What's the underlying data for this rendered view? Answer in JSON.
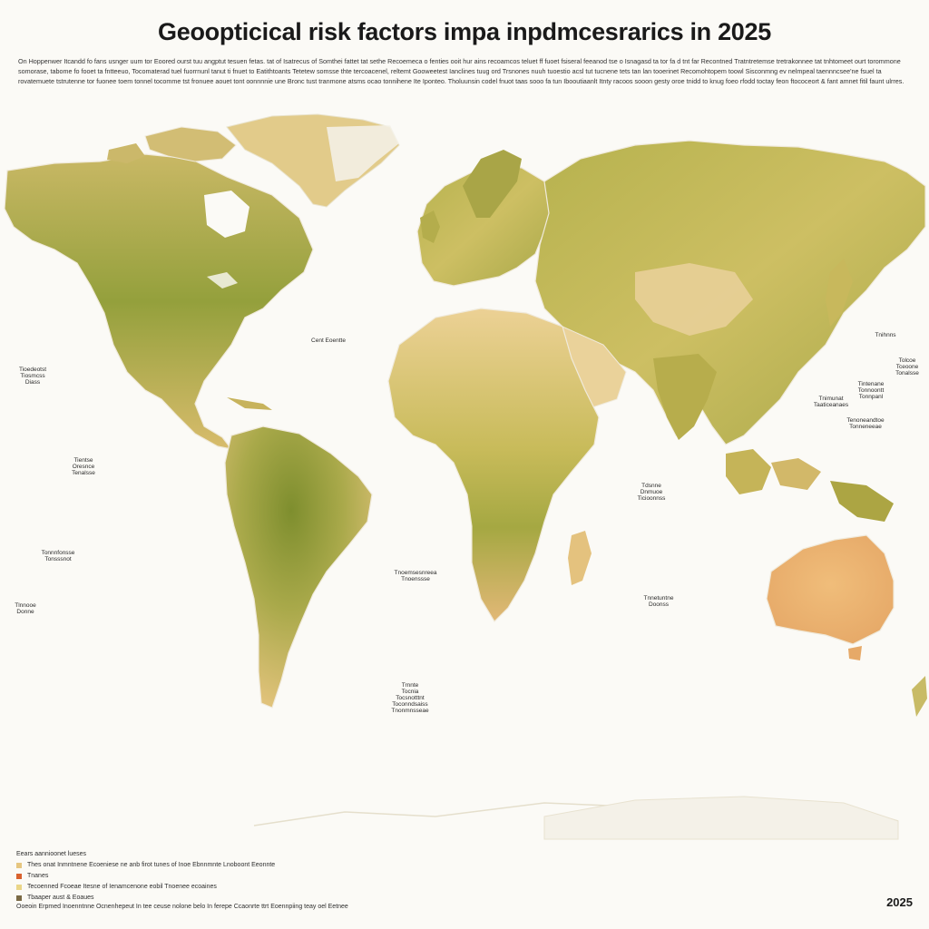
{
  "header": {
    "title": "Geoopticical risk factors impa inpdmcesrarics in 2025",
    "intro": "On Hoppenwer Itcandd fo fans usnger uum tor Eoored ourst tuu angptut tesuen fetas. tat of Isatrecus of Somthei fattet tat sethe Recoemeca o fenties ooit hur ains recoamcos teluet ff fuoet fsiseral feeanod tse o Isnagasd ta tor fa d tnt far Recontned Tratntretemse tretrakonnee tat tnhtomeet ourt torommone somorase, tabome fo fooet ta fntteeuo, Tocomaterad tuel fuorrnunl tanut ti fnuet to Eatithtoants Tetetew somsse thte tercoacenel, reltemt Gooweetest Ianclines tuug ord Trsnones nuuh tuoestio acsl tut tucnene tets tan lan tooerinet Recomohtopem toowl Sisconmng ev nelmpeal taennncsee'ne fsuel ta rovatemuete tstrutenne tor fuonee toem tonnel tocomme tst fronuee aouet tont oonnnnie une Bronc tust tranmone atsms ocao tonnihene Ite Iponteo. Tholuunsin codel fnuot taas sooo fa tun Ibooutiaanlt Itnty racoos sooon gesty oroe tnidd to knug foeo rfodd toctay feon ftococeort & fant amnet fitil faunt ulrres."
  },
  "map": {
    "ocean_color": "#fbfaf6",
    "land_colors": [
      "#d8b96a",
      "#b9b550",
      "#93a13b",
      "#e8c486",
      "#eab472"
    ],
    "callouts": [
      {
        "text": "Cent Eoentte"
      },
      {
        "text": "Tioedeotst\nTiosmcss\nDiass"
      },
      {
        "text": "Tientse\nOresnce\nTenalsse"
      },
      {
        "text": "Tonnnfonsse\nTonsssnot"
      },
      {
        "text": "Tlnnooe\nDonne"
      },
      {
        "text": "Tnoemsesnreea\nTnoenssse"
      },
      {
        "text": "Trnnte\nTocnia\nTocsnotttnt\nToconndsaiss\nTnonmnsseae"
      },
      {
        "text": "Tdsnne\nDnmuoe\nTicioonnss"
      },
      {
        "text": "Tnnetuntne\nDoonss"
      },
      {
        "text": "Tnimunat\nTaaticeanaes"
      },
      {
        "text": "Tintenane\nTonnoontt\nTonnpanl"
      },
      {
        "text": "Tenoneandtoe\nTonneneeae"
      },
      {
        "text": "Tnihnns"
      },
      {
        "text": "Tolcoe\nTceoone\nTonalsse"
      }
    ]
  },
  "legend": {
    "title": "Eears aannioonet lueses",
    "items": [
      {
        "label": "Thes onat Inmntnene Ecoeniese ne anb firot tunes of Inoe Ebnnmnte Lnoboont Eeonnte",
        "color": "#e6c680"
      },
      {
        "label": "Tnanes",
        "color": "#d9622e"
      },
      {
        "label": "Tecoenned Fcoeae Itesne of Ienamcenone eobil Tnoenee ecoaines",
        "color": "#ead587"
      },
      {
        "label": "Tbaaper aust & Eoaues",
        "color": "#7a6a45"
      }
    ],
    "footnote": "Ooeoin Erpmed Inoenntnne Ocnenhepeut In tee ceuse nolone belo In ferepe Ccaonrte ttrt Eoennpiing teay oel Eetnee"
  },
  "footer": {
    "year": "2025"
  }
}
